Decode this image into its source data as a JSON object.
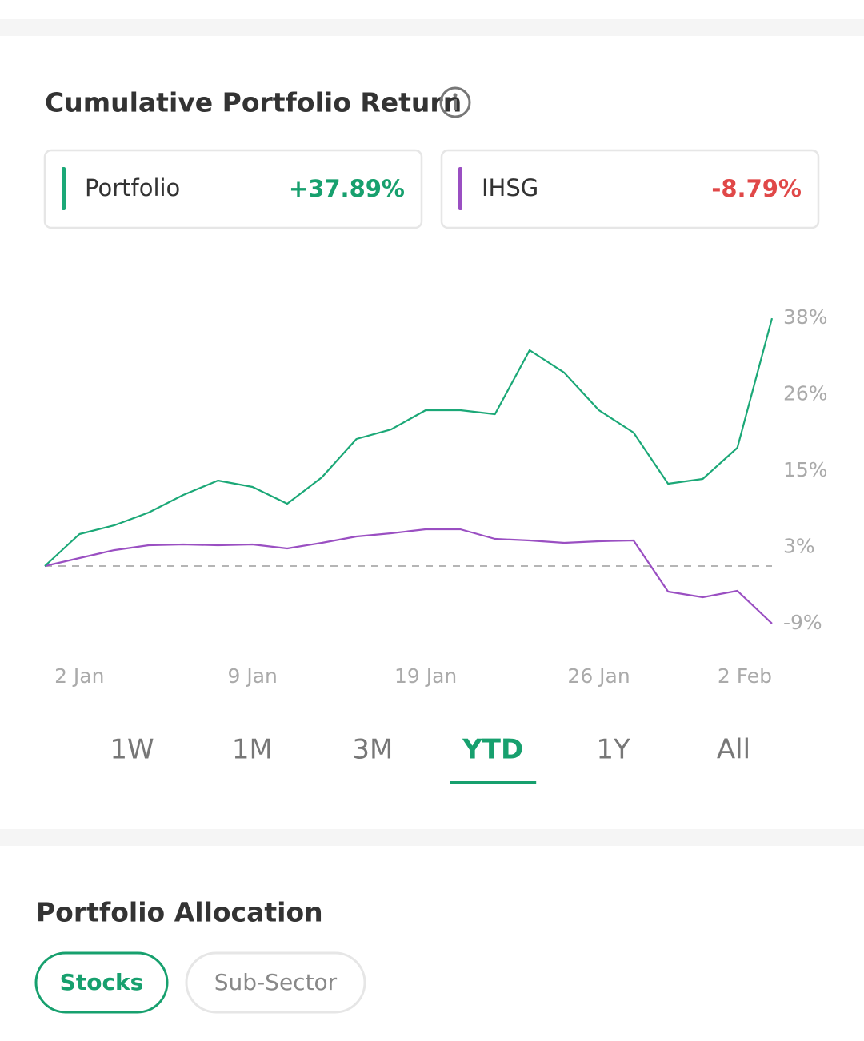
{
  "header": {
    "title": "Cumulative Portfolio Return"
  },
  "chart_data": {
    "type": "line",
    "categories": [
      null,
      "2 Jan",
      null,
      null,
      null,
      null,
      "9 Jan",
      null,
      null,
      null,
      null,
      "19 Jan",
      null,
      null,
      null,
      null,
      "26 Jan",
      null,
      null,
      null,
      null,
      "2 Feb"
    ],
    "series": [
      {
        "name": "Portfolio",
        "color": "#1ba877",
        "values": [
          0,
          4.89,
          6.23,
          8.19,
          10.88,
          13.08,
          12.1,
          9.54,
          13.57,
          19.44,
          20.9,
          23.84,
          23.84,
          23.23,
          33.01,
          29.58,
          23.84,
          20.42,
          12.59,
          13.33,
          18.09,
          37.89
        ],
        "value_labels": [
          null,
          null,
          null,
          null,
          null,
          null,
          null,
          null,
          null,
          null,
          null,
          null,
          null,
          null,
          null,
          null,
          null,
          null,
          null,
          null,
          null,
          "+37.89%"
        ]
      },
      {
        "name": "IHSG",
        "color": "#9a4fc2",
        "values": [
          0,
          1.22,
          2.44,
          3.18,
          3.3,
          3.18,
          3.3,
          2.69,
          3.55,
          4.52,
          5.01,
          5.62,
          5.62,
          4.16,
          3.91,
          3.55,
          3.79,
          3.91,
          -3.91,
          -4.77,
          -3.79,
          -8.79
        ],
        "value_labels": [
          null,
          null,
          null,
          null,
          null,
          null,
          null,
          null,
          null,
          null,
          null,
          null,
          null,
          null,
          null,
          null,
          null,
          null,
          null,
          null,
          null,
          "-8.79%"
        ]
      }
    ],
    "ylim": [
      -10.88,
      40.47
    ],
    "yticks": [
      {
        "value": 37.89,
        "label": "38%"
      },
      {
        "value": 26.22,
        "label": "26%"
      },
      {
        "value": 14.55,
        "label": "15%"
      },
      {
        "value": 2.88,
        "label": "3%"
      },
      {
        "value": -8.79,
        "label": "-9%"
      }
    ],
    "reference_line": 0,
    "grid": false
  },
  "tabs": {
    "items": [
      "1W",
      "1M",
      "3M",
      "YTD",
      "1Y",
      "All"
    ],
    "selected": 3
  },
  "allocation": {
    "title": "Portfolio Allocation",
    "chips": [
      "Stocks",
      "Sub-Sector"
    ],
    "selected": 0
  }
}
